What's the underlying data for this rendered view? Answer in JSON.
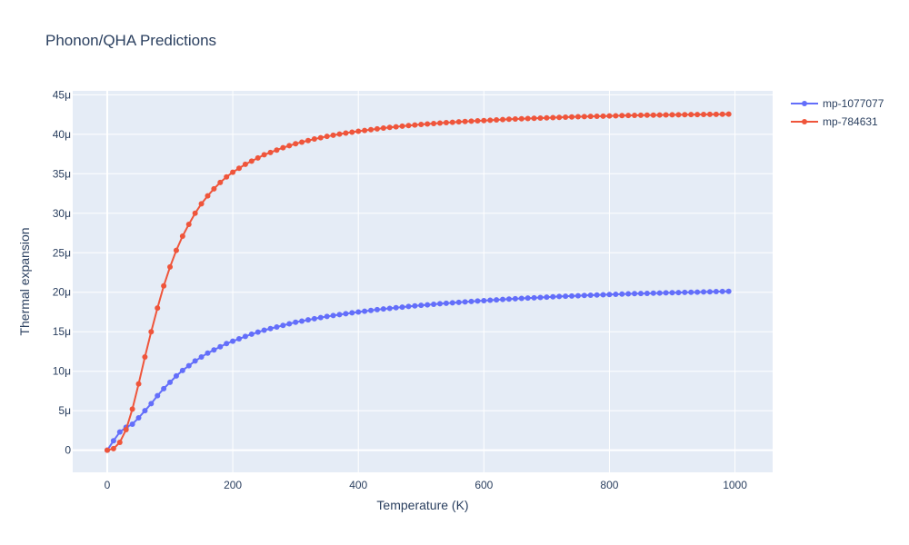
{
  "chart_data": {
    "type": "line",
    "title": "Phonon/QHA Predictions",
    "xlabel": "Temperature (K)",
    "ylabel": "Thermal expansion",
    "xlim": [
      -55,
      1060
    ],
    "ylim": [
      -2.8e-06,
      4.55e-05
    ],
    "x_ticks": [
      0,
      200,
      400,
      600,
      800,
      1000
    ],
    "x_tick_labels": [
      "0",
      "200",
      "400",
      "600",
      "800",
      "1000"
    ],
    "y_ticks": [
      0,
      5e-06,
      1e-05,
      1.5e-05,
      2e-05,
      2.5e-05,
      3e-05,
      3.5e-05,
      4e-05,
      4.5e-05
    ],
    "y_tick_labels": [
      "0",
      "5μ",
      "10μ",
      "15μ",
      "20μ",
      "25μ",
      "30μ",
      "35μ",
      "40μ",
      "45μ"
    ],
    "grid": true,
    "legend_position": "top-right",
    "x": [
      0,
      10,
      20,
      30,
      40,
      50,
      60,
      70,
      80,
      90,
      100,
      110,
      120,
      130,
      140,
      150,
      160,
      170,
      180,
      190,
      200,
      210,
      220,
      230,
      240,
      250,
      260,
      270,
      280,
      290,
      300,
      310,
      320,
      330,
      340,
      350,
      360,
      370,
      380,
      390,
      400,
      410,
      420,
      430,
      440,
      450,
      460,
      470,
      480,
      490,
      500,
      510,
      520,
      530,
      540,
      550,
      560,
      570,
      580,
      590,
      600,
      610,
      620,
      630,
      640,
      650,
      660,
      670,
      680,
      690,
      700,
      710,
      720,
      730,
      740,
      750,
      760,
      770,
      780,
      790,
      800,
      810,
      820,
      830,
      840,
      850,
      860,
      870,
      880,
      890,
      900,
      910,
      920,
      930,
      940,
      950,
      960,
      970,
      980,
      990
    ],
    "series": [
      {
        "name": "mp-1077077",
        "color": "#636efa",
        "values": [
          0,
          1.2e-06,
          2.3e-06,
          2.9e-06,
          3.3e-06,
          4.1e-06,
          5e-06,
          5.9e-06,
          6.9e-06,
          7.8e-06,
          8.6e-06,
          9.4e-06,
          1.01e-05,
          1.07e-05,
          1.13e-05,
          1.18e-05,
          1.23e-05,
          1.27e-05,
          1.31e-05,
          1.35e-05,
          1.38e-05,
          1.41e-05,
          1.44e-05,
          1.47e-05,
          1.495e-05,
          1.52e-05,
          1.54e-05,
          1.56e-05,
          1.58e-05,
          1.6e-05,
          1.62e-05,
          1.635e-05,
          1.65e-05,
          1.665e-05,
          1.68e-05,
          1.693e-05,
          1.705e-05,
          1.717e-05,
          1.728e-05,
          1.739e-05,
          1.75e-05,
          1.76e-05,
          1.77e-05,
          1.78e-05,
          1.788e-05,
          1.796e-05,
          1.804e-05,
          1.812e-05,
          1.82e-05,
          1.827e-05,
          1.834e-05,
          1.841e-05,
          1.848e-05,
          1.854e-05,
          1.86e-05,
          1.866e-05,
          1.872e-05,
          1.878e-05,
          1.884e-05,
          1.889e-05,
          1.894e-05,
          1.899e-05,
          1.904e-05,
          1.909e-05,
          1.914e-05,
          1.918e-05,
          1.922e-05,
          1.926e-05,
          1.93e-05,
          1.934e-05,
          1.938e-05,
          1.942e-05,
          1.946e-05,
          1.95e-05,
          1.953e-05,
          1.956e-05,
          1.959e-05,
          1.962e-05,
          1.965e-05,
          1.968e-05,
          1.971e-05,
          1.974e-05,
          1.977e-05,
          1.98e-05,
          1.982e-05,
          1.984e-05,
          1.986e-05,
          1.988e-05,
          1.99e-05,
          1.992e-05,
          1.994e-05,
          1.996e-05,
          1.998e-05,
          2e-05,
          2.002e-05,
          2.004e-05,
          2.006e-05,
          2.008e-05,
          2.01e-05,
          2.012e-05
        ]
      },
      {
        "name": "mp-784631",
        "color": "#ef553b",
        "values": [
          0,
          2e-07,
          1e-06,
          2.6e-06,
          5.2e-06,
          8.4e-06,
          1.18e-05,
          1.5e-05,
          1.8e-05,
          2.08e-05,
          2.32e-05,
          2.53e-05,
          2.71e-05,
          2.86e-05,
          3e-05,
          3.12e-05,
          3.22e-05,
          3.31e-05,
          3.39e-05,
          3.46e-05,
          3.52e-05,
          3.57e-05,
          3.62e-05,
          3.66e-05,
          3.7e-05,
          3.74e-05,
          3.77e-05,
          3.8e-05,
          3.83e-05,
          3.855e-05,
          3.88e-05,
          3.9e-05,
          3.92e-05,
          3.94e-05,
          3.957e-05,
          3.973e-05,
          3.988e-05,
          4.002e-05,
          4.015e-05,
          4.027e-05,
          4.038e-05,
          4.049e-05,
          4.059e-05,
          4.069e-05,
          4.078e-05,
          4.087e-05,
          4.095e-05,
          4.103e-05,
          4.11e-05,
          4.117e-05,
          4.124e-05,
          4.13e-05,
          4.136e-05,
          4.142e-05,
          4.147e-05,
          4.152e-05,
          4.157e-05,
          4.162e-05,
          4.166e-05,
          4.17e-05,
          4.174e-05,
          4.178e-05,
          4.182e-05,
          4.186e-05,
          4.19e-05,
          4.193e-05,
          4.196e-05,
          4.199e-05,
          4.202e-05,
          4.205e-05,
          4.208e-05,
          4.211e-05,
          4.214e-05,
          4.217e-05,
          4.22e-05,
          4.222e-05,
          4.224e-05,
          4.226e-05,
          4.228e-05,
          4.23e-05,
          4.232e-05,
          4.234e-05,
          4.236e-05,
          4.238e-05,
          4.24e-05,
          4.241e-05,
          4.242e-05,
          4.243e-05,
          4.244e-05,
          4.245e-05,
          4.246e-05,
          4.247e-05,
          4.248e-05,
          4.249e-05,
          4.25e-05,
          4.251e-05,
          4.252e-05,
          4.253e-05,
          4.254e-05,
          4.255e-05
        ]
      }
    ]
  }
}
